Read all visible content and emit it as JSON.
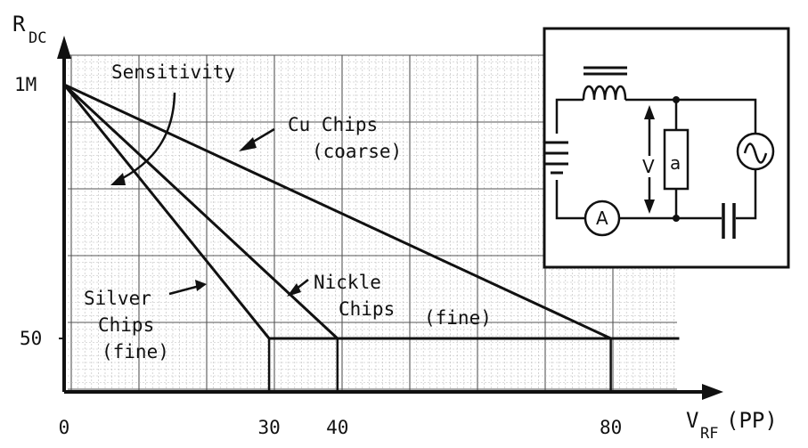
{
  "chart_data": {
    "type": "line",
    "title": "",
    "y_axis": {
      "label_main": "R",
      "label_sub": "DC",
      "ticks": [
        {
          "value": 1000000,
          "label": "1M"
        },
        {
          "value": 50,
          "label": "50"
        }
      ]
    },
    "x_axis": {
      "label_main": "V",
      "label_sub": "RF",
      "label_suffix": "(PP)",
      "ticks": [
        0,
        30,
        40,
        80
      ],
      "range": [
        0,
        90
      ]
    },
    "series": [
      {
        "name": "Silver Chips (fine)",
        "points": [
          {
            "x": 0,
            "y": "1M"
          },
          {
            "x": 30,
            "y": "50"
          },
          {
            "x": 90,
            "y": "50"
          }
        ]
      },
      {
        "name": "Nickle Chips (fine)",
        "points": [
          {
            "x": 0,
            "y": "1M"
          },
          {
            "x": 40,
            "y": "50"
          },
          {
            "x": 90,
            "y": "50"
          }
        ]
      },
      {
        "name": "Cu Chips (coarse)",
        "points": [
          {
            "x": 0,
            "y": "1M"
          },
          {
            "x": 80,
            "y": "50"
          },
          {
            "x": 90,
            "y": "50"
          }
        ]
      }
    ],
    "annotations": {
      "sensitivity": "Sensitivity",
      "cu_line1": "Cu Chips",
      "cu_line2": "(coarse)",
      "nickle_line1": "Nickle",
      "nickle_line2": "Chips",
      "fine_right": "(fine)",
      "silver_line1": "Silver",
      "silver_line2": "Chips",
      "silver_line3": "(fine)"
    },
    "grid": true
  },
  "inset_circuit": {
    "voltage_label": "V",
    "resistor_label": "a",
    "ammeter_label": "A",
    "source_icon": "ac-source-icon",
    "inductor_icon": "inductor-icon",
    "capacitor_icon": "capacitor-icon",
    "battery_icon": "battery-icon"
  }
}
